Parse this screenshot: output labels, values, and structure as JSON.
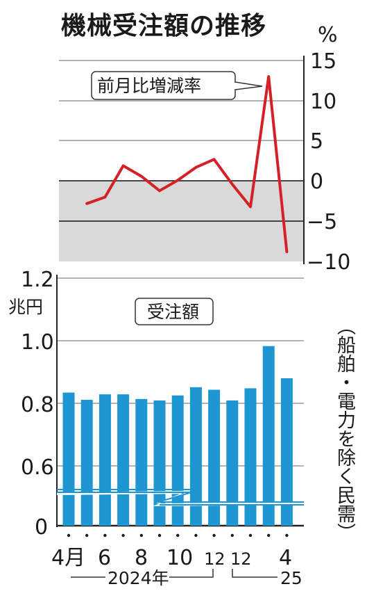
{
  "title": "機械受注額の推移",
  "note": "（船舶・電力を除く民需）",
  "chart_data": [
    {
      "type": "line",
      "series": [
        {
          "name": "前月比増減率",
          "values": [
            -2.8,
            -2.0,
            1.9,
            0.6,
            -1.2,
            0.1,
            1.7,
            2.7,
            -0.4,
            -3.2,
            13.0,
            -8.8
          ],
          "color": "#d42027"
        }
      ],
      "unit": "%",
      "ylim": [
        -10,
        15
      ],
      "yticks": [
        "15",
        "10",
        "5",
        "0",
        "−5",
        "−10"
      ],
      "negative_region_shaded": true,
      "grid": true
    },
    {
      "type": "bar",
      "series": [
        {
          "name": "受注額",
          "values": [
            0.88,
            0.86,
            0.875,
            0.875,
            0.862,
            0.858,
            0.872,
            0.895,
            0.888,
            0.858,
            0.892,
            1.01,
            0.92
          ],
          "color": "#1e96d2"
        }
      ],
      "unit": "兆円",
      "ylim": [
        0.5,
        1.2
      ],
      "axis_break": true,
      "yticks": [
        "1.2",
        "1.0",
        "0.8",
        "0.6",
        "0"
      ],
      "xtick_labels": [
        "4月",
        "6",
        "8",
        "10",
        "12",
        "12",
        "4"
      ],
      "year_labels": [
        "2024年",
        "25"
      ],
      "grid": true
    }
  ]
}
